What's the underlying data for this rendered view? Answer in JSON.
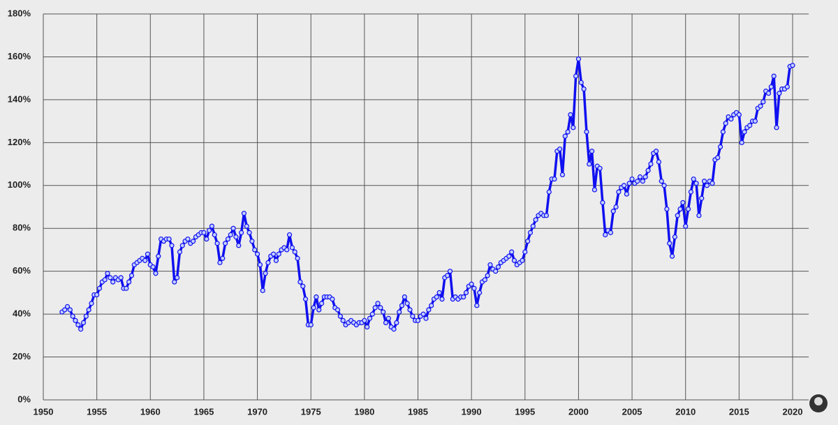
{
  "chart_data": {
    "type": "line",
    "x": [
      1951.75,
      1952,
      1952.25,
      1952.5,
      1952.75,
      1953,
      1953.25,
      1953.5,
      1953.75,
      1954,
      1954.25,
      1954.5,
      1954.75,
      1955,
      1955.25,
      1955.5,
      1955.75,
      1956,
      1956.25,
      1956.5,
      1956.75,
      1957,
      1957.25,
      1957.5,
      1957.75,
      1958,
      1958.25,
      1958.5,
      1958.75,
      1959,
      1959.25,
      1959.5,
      1959.75,
      1960,
      1960.25,
      1960.5,
      1960.75,
      1961,
      1961.25,
      1961.5,
      1961.75,
      1962,
      1962.25,
      1962.5,
      1962.75,
      1963,
      1963.25,
      1963.5,
      1963.75,
      1964,
      1964.25,
      1964.5,
      1964.75,
      1965,
      1965.25,
      1965.5,
      1965.75,
      1966,
      1966.25,
      1966.5,
      1966.75,
      1967,
      1967.25,
      1967.5,
      1967.75,
      1968,
      1968.25,
      1968.5,
      1968.75,
      1969,
      1969.25,
      1969.5,
      1969.75,
      1970,
      1970.25,
      1970.5,
      1970.75,
      1971,
      1971.25,
      1971.5,
      1971.75,
      1972,
      1972.25,
      1972.5,
      1972.75,
      1973,
      1973.25,
      1973.5,
      1973.75,
      1974,
      1974.25,
      1974.5,
      1974.75,
      1975,
      1975.25,
      1975.5,
      1975.75,
      1976,
      1976.25,
      1976.5,
      1976.75,
      1977,
      1977.25,
      1977.5,
      1977.75,
      1978,
      1978.25,
      1978.5,
      1978.75,
      1979,
      1979.25,
      1979.5,
      1979.75,
      1980,
      1980.25,
      1980.5,
      1980.75,
      1981,
      1981.25,
      1981.5,
      1981.75,
      1982,
      1982.25,
      1982.5,
      1982.75,
      1983,
      1983.25,
      1983.5,
      1983.75,
      1984,
      1984.25,
      1984.5,
      1984.75,
      1985,
      1985.25,
      1985.5,
      1985.75,
      1986,
      1986.25,
      1986.5,
      1986.75,
      1987,
      1987.25,
      1987.5,
      1987.75,
      1988,
      1988.25,
      1988.5,
      1988.75,
      1989,
      1989.25,
      1989.5,
      1989.75,
      1990,
      1990.25,
      1990.5,
      1990.75,
      1991,
      1991.25,
      1991.5,
      1991.75,
      1992,
      1992.25,
      1992.5,
      1992.75,
      1993,
      1993.25,
      1993.5,
      1993.75,
      1994,
      1994.25,
      1994.5,
      1994.75,
      1995,
      1995.25,
      1995.5,
      1995.75,
      1996,
      1996.25,
      1996.5,
      1996.75,
      1997,
      1997.25,
      1997.5,
      1997.75,
      1998,
      1998.25,
      1998.5,
      1998.75,
      1999,
      1999.25,
      1999.5,
      1999.75,
      2000,
      2000.25,
      2000.5,
      2000.75,
      2001,
      2001.25,
      2001.5,
      2001.75,
      2002,
      2002.25,
      2002.5,
      2002.75,
      2003,
      2003.25,
      2003.5,
      2003.75,
      2004,
      2004.25,
      2004.5,
      2004.75,
      2005,
      2005.25,
      2005.5,
      2005.75,
      2006,
      2006.25,
      2006.5,
      2006.75,
      2007,
      2007.25,
      2007.5,
      2007.75,
      2008,
      2008.25,
      2008.5,
      2008.75,
      2009,
      2009.25,
      2009.5,
      2009.75,
      2010,
      2010.25,
      2010.5,
      2010.75,
      2011,
      2011.25,
      2011.5,
      2011.75,
      2012,
      2012.25,
      2012.5,
      2012.75,
      2013,
      2013.25,
      2013.5,
      2013.75,
      2014,
      2014.25,
      2014.5,
      2014.75,
      2015,
      2015.25,
      2015.5,
      2015.75,
      2016,
      2016.25,
      2016.5,
      2016.75,
      2017,
      2017.25,
      2017.5,
      2017.75,
      2018,
      2018.25,
      2018.5,
      2018.75,
      2019,
      2019.25,
      2019.5,
      2019.75,
      2020
    ],
    "series": [
      {
        "color": "#1010f0",
        "values": [
          41,
          42,
          43.5,
          42,
          39,
          37,
          35,
          33,
          36,
          39,
          42,
          45,
          49,
          49,
          52,
          55,
          56,
          59,
          57,
          55,
          57,
          56,
          57,
          52,
          52,
          55,
          58,
          63,
          64,
          65,
          66,
          65,
          68,
          63,
          62,
          59,
          67,
          75,
          74,
          75,
          75,
          72,
          55,
          57,
          69,
          72,
          74,
          75,
          73,
          74,
          76,
          77,
          78,
          78,
          75,
          79,
          81,
          77,
          73,
          64,
          66,
          73,
          75,
          77,
          80,
          76,
          72,
          78,
          87,
          81,
          78,
          74,
          70,
          68,
          63,
          51,
          59,
          64,
          67,
          68,
          65,
          68,
          70,
          71,
          70,
          77,
          71,
          69,
          66,
          55,
          53,
          47,
          35,
          35,
          43,
          48,
          42,
          45,
          48,
          48,
          48,
          47,
          43,
          42,
          39,
          37,
          35,
          36,
          37,
          36,
          35,
          36,
          36,
          37,
          34,
          38,
          40,
          43,
          45,
          43,
          41,
          36,
          38,
          34,
          33,
          36,
          41,
          44,
          48,
          45,
          42,
          39,
          37,
          37,
          39,
          40,
          38,
          42,
          44,
          47,
          48,
          50,
          47,
          57,
          58,
          60,
          47,
          48,
          47,
          48,
          48,
          50,
          53,
          54,
          52,
          44,
          50,
          55,
          56,
          58,
          63,
          61,
          60,
          62,
          64,
          65,
          66,
          67,
          69,
          65,
          63,
          64,
          65,
          69,
          74,
          78,
          81,
          84,
          86,
          87,
          86,
          86,
          97,
          103,
          103,
          116,
          117,
          105,
          123,
          125,
          133,
          127,
          151,
          159,
          148,
          145,
          125,
          110,
          116,
          98,
          109,
          108,
          92,
          77,
          79,
          78,
          88,
          90,
          97,
          99,
          100,
          96,
          101,
          103,
          101,
          102,
          104,
          102,
          104,
          107,
          110,
          115,
          116,
          111,
          102,
          100,
          89,
          73,
          67,
          76,
          86,
          89,
          92,
          81,
          89,
          97,
          103,
          101,
          86,
          94,
          102,
          100,
          102,
          101,
          112,
          113,
          118,
          125,
          129,
          132,
          131,
          133,
          134,
          133,
          120,
          125,
          127,
          128,
          130,
          130,
          136,
          137,
          139,
          144,
          143,
          146,
          151,
          127,
          143,
          145,
          145,
          146,
          155.5,
          156
        ]
      }
    ],
    "xlim": [
      1950,
      2021.5
    ],
    "ylim": [
      0,
      180
    ],
    "xticks": [
      1950,
      1955,
      1960,
      1965,
      1970,
      1975,
      1980,
      1985,
      1990,
      1995,
      2000,
      2005,
      2010,
      2015,
      2020
    ],
    "yticks": [
      {
        "value": 0,
        "label": "0%"
      },
      {
        "value": 20,
        "label": "20%"
      },
      {
        "value": 40,
        "label": "40%"
      },
      {
        "value": 60,
        "label": "60%"
      },
      {
        "value": 80,
        "label": "80%"
      },
      {
        "value": 100,
        "label": "100%"
      },
      {
        "value": 120,
        "label": "120%"
      },
      {
        "value": 140,
        "label": "140%"
      },
      {
        "value": 160,
        "label": "160%"
      },
      {
        "value": 180,
        "label": "180%"
      }
    ],
    "grid": true
  }
}
